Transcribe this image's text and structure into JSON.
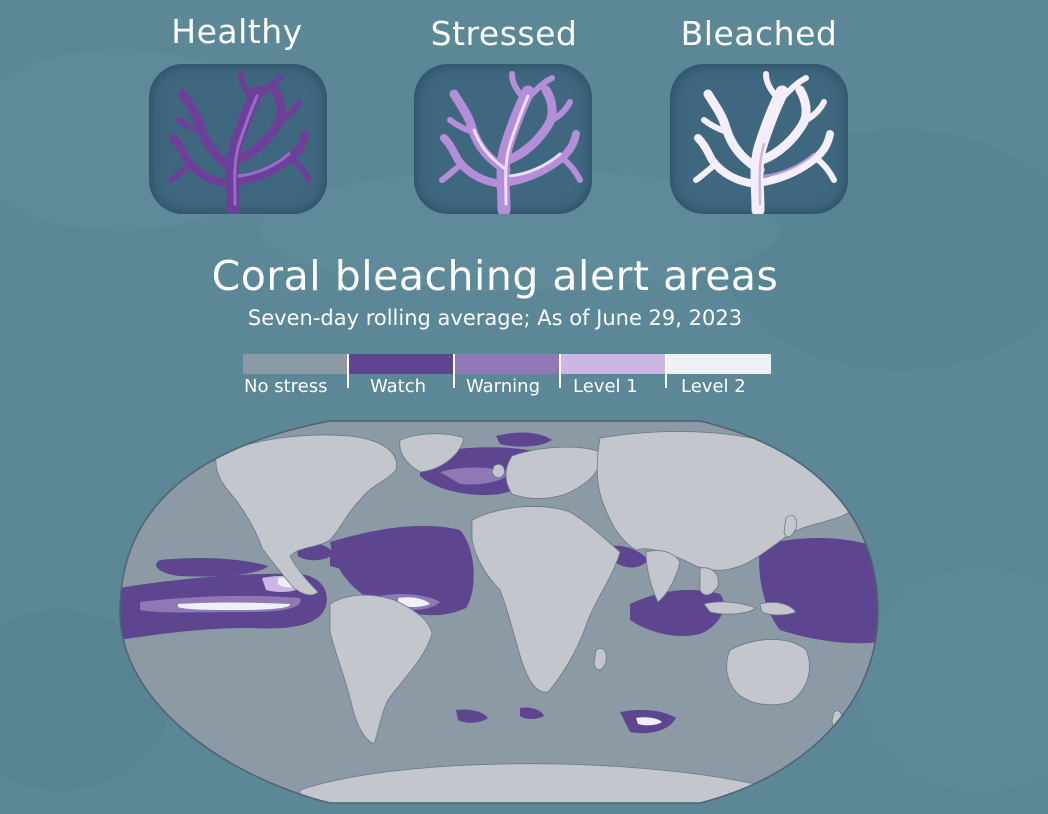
{
  "coral_states": [
    {
      "label": "Healthy"
    },
    {
      "label": "Stressed"
    },
    {
      "label": "Bleached"
    }
  ],
  "map_title": "Coral bleaching alert areas",
  "map_subtitle": "Seven-day rolling average; As of June 29, 2023",
  "legend": [
    {
      "label": "No stress",
      "color": "#8c9aa6"
    },
    {
      "label": "Watch",
      "color": "#5e4590"
    },
    {
      "label": "Warning",
      "color": "#8f78b6"
    },
    {
      "label": "Level 1",
      "color": "#cbb6e4"
    },
    {
      "label": "Level 2",
      "color": "#eef0f8"
    }
  ],
  "colors": {
    "background": "#5b8797",
    "ocean": "#8c9aa6",
    "land": "#c3c7cd",
    "coral_card": "#3f6880"
  },
  "map_projection": "robinson"
}
